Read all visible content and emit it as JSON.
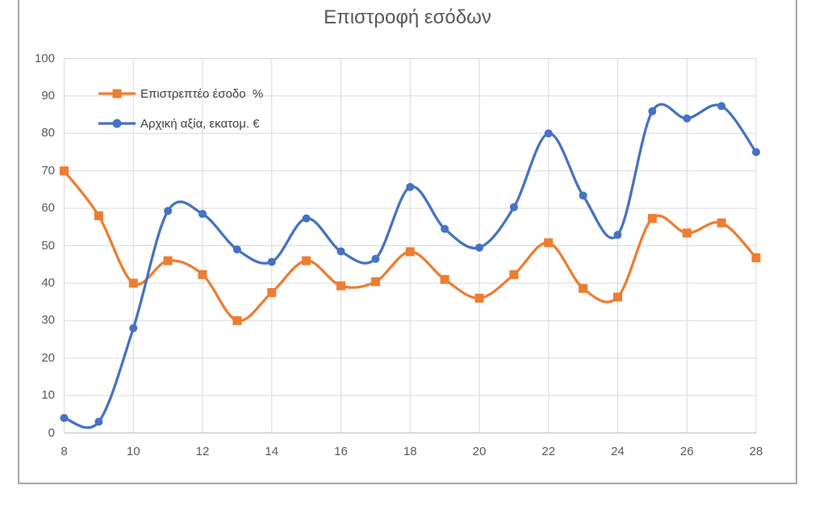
{
  "chart_data": {
    "type": "line",
    "title": "Επιστροφή εσόδων",
    "smooth": true,
    "grid": true,
    "legend_position": "inside-top-left",
    "xlim": [
      8,
      28
    ],
    "ylim": [
      0,
      100
    ],
    "xticks": [
      8,
      10,
      12,
      14,
      16,
      18,
      20,
      22,
      24,
      26,
      28
    ],
    "yticks": [
      0,
      10,
      20,
      30,
      40,
      50,
      60,
      70,
      80,
      90,
      100
    ],
    "x": [
      8,
      9,
      10,
      11,
      12,
      13,
      14,
      15,
      16,
      17,
      18,
      19,
      20,
      21,
      22,
      23,
      24,
      25,
      26,
      27,
      28
    ],
    "series": [
      {
        "name": "Επιστρεπτέο έσοδο  %",
        "color": "#ED7D31",
        "marker": "square",
        "values": [
          70,
          58,
          40,
          46,
          42.3,
          30,
          37.5,
          46,
          39.3,
          40.4,
          48.4,
          41,
          36,
          42.3,
          50.8,
          38.6,
          36.3,
          57.3,
          53.4,
          56.1,
          46.8
        ]
      },
      {
        "name": "Αρχική αξία, εκατομ. €",
        "color": "#4472C4",
        "marker": "circle",
        "values": [
          4,
          3,
          28,
          59.3,
          58.5,
          49,
          45.7,
          57.3,
          48.5,
          46.5,
          65.7,
          54.5,
          49.5,
          60.3,
          80,
          63.4,
          52.9,
          85.9,
          84,
          87.3,
          75
        ]
      }
    ],
    "colors": {
      "grid": "#D9D9D9",
      "axis": "#BFBFBF",
      "title": "#595959",
      "tick_labels": "#595959",
      "legend_text": "#404040",
      "frame_border": "#A6A6A6"
    }
  }
}
